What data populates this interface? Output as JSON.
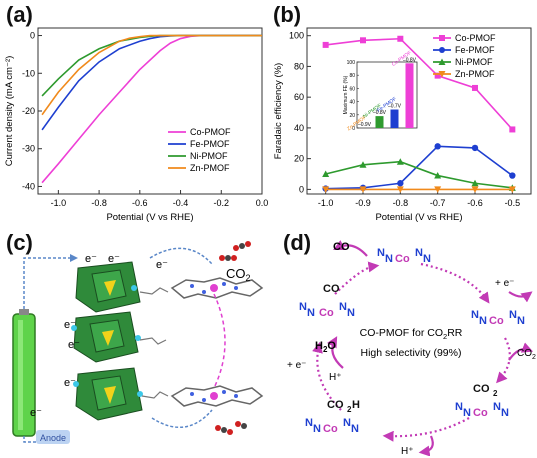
{
  "panels": [
    {
      "label": "(a)"
    },
    {
      "label": "(b)"
    },
    {
      "label": "(c)"
    },
    {
      "label": "(d)"
    }
  ],
  "chart_data": [
    {
      "type": "line",
      "panel": "(a)",
      "xlabel": "Potential (V vs RHE)",
      "ylabel": "Current density (mA cm⁻²)",
      "xlim": [
        -1.1,
        0.0
      ],
      "ylim": [
        -42,
        2
      ],
      "xticks": [
        "-1.0",
        "-0.8",
        "-0.6",
        "-0.4",
        "-0.2",
        "0.0"
      ],
      "yticks": [
        "0",
        "-10",
        "-20",
        "-30",
        "-40"
      ],
      "legend_position": "bottom-right",
      "series": [
        {
          "name": "Co-PMOF",
          "color": "#ee3fd6",
          "x": [
            -1.08,
            -1.0,
            -0.9,
            -0.8,
            -0.7,
            -0.6,
            -0.5,
            -0.45,
            -0.4,
            -0.35,
            -0.3,
            0.0
          ],
          "y": [
            -39,
            -34,
            -27.5,
            -21,
            -15,
            -9,
            -4,
            -2,
            -0.8,
            -0.2,
            0,
            0
          ]
        },
        {
          "name": "Fe-PMOF",
          "color": "#1e3fd0",
          "x": [
            -1.08,
            -1.0,
            -0.9,
            -0.8,
            -0.7,
            -0.6,
            -0.55,
            -0.5,
            -0.45,
            -0.4,
            0.0
          ],
          "y": [
            -25,
            -19,
            -12,
            -7,
            -3.5,
            -1.5,
            -0.8,
            -0.3,
            -0.1,
            0,
            0
          ]
        },
        {
          "name": "Ni-PMOF",
          "color": "#2e9a2e",
          "x": [
            -1.08,
            -1.0,
            -0.9,
            -0.8,
            -0.7,
            -0.6,
            -0.55,
            -0.5,
            0.0
          ],
          "y": [
            -16,
            -11.5,
            -6.5,
            -3.5,
            -1.5,
            -0.5,
            -0.2,
            0,
            0
          ]
        },
        {
          "name": "Zn-PMOF",
          "color": "#f08a1c",
          "x": [
            -1.08,
            -1.0,
            -0.9,
            -0.8,
            -0.7,
            -0.65,
            -0.6,
            -0.55,
            0.0
          ],
          "y": [
            -21,
            -15,
            -9,
            -4.5,
            -1.5,
            -0.7,
            -0.3,
            0,
            0
          ]
        }
      ]
    },
    {
      "type": "line",
      "panel": "(b)",
      "xlabel": "Potential (V vs RHE)",
      "ylabel": "Faradaic efficiency (%)",
      "xlim": [
        -1.05,
        -0.45
      ],
      "ylim": [
        -3,
        105
      ],
      "xticks": [
        "-1.0",
        "-0.9",
        "-0.8",
        "-0.7",
        "-0.6",
        "-0.5"
      ],
      "yticks": [
        "0",
        "20",
        "40",
        "60",
        "80",
        "100"
      ],
      "legend_position": "top-right",
      "series": [
        {
          "name": "Co-PMOF",
          "color": "#ee3fd6",
          "marker": "square",
          "x": [
            -1.0,
            -0.9,
            -0.8,
            -0.7,
            -0.6,
            -0.5
          ],
          "y": [
            94,
            97,
            98,
            74,
            66,
            39
          ]
        },
        {
          "name": "Fe-PMOF",
          "color": "#1e3fd0",
          "marker": "circle",
          "x": [
            -1.0,
            -0.9,
            -0.8,
            -0.7,
            -0.6,
            -0.5
          ],
          "y": [
            0.5,
            1,
            4,
            28,
            27,
            9
          ]
        },
        {
          "name": "Ni-PMOF",
          "color": "#2e9a2e",
          "marker": "triangle-up",
          "x": [
            -1.0,
            -0.9,
            -0.8,
            -0.7,
            -0.6,
            -0.5
          ],
          "y": [
            10,
            16,
            18,
            9,
            4,
            1
          ]
        },
        {
          "name": "Zn-PMOF",
          "color": "#f08a1c",
          "marker": "triangle-down",
          "x": [
            -1.0,
            -0.9,
            -0.8,
            -0.7,
            -0.6,
            -0.5
          ],
          "y": [
            0,
            0,
            0,
            0,
            0,
            0
          ]
        }
      ],
      "inset": {
        "type": "bar",
        "ylabel": "Maximum FE (%)",
        "yticks": [
          "0",
          "20",
          "40",
          "60",
          "80",
          "100"
        ],
        "ylim": [
          0,
          100
        ],
        "categories": [
          "Zn-PMOF",
          "Ni-PMOF",
          "Fe-PMOF",
          "Co-PMOF"
        ],
        "values": [
          0,
          18,
          28,
          98
        ],
        "bar_labels": [
          "–0.9V",
          "–0.8V",
          "–0.7V",
          "–0.8V"
        ],
        "colors": [
          "#f08a1c",
          "#2e9a2e",
          "#1e3fd0",
          "#ee3fd6"
        ]
      }
    }
  ],
  "panel_c": {
    "electron": "e⁻",
    "co2": "CO",
    "co2_sub": "2",
    "anode": "Anode"
  },
  "panel_d": {
    "center_line1": "CO-PMOF for CO",
    "center_line1_sub": "2",
    "center_line1_end": "RR",
    "center_line2": "High selectivity (99%)",
    "co_out": "CO",
    "e_in": "+ e⁻",
    "co2_in": "CO",
    "co2_sub": "2",
    "h_in_bottom": "H⁺",
    "h2o_out": "H",
    "h2o_sub": "2",
    "h2o_end": "O",
    "e_in_left": "+ e⁻",
    "h_in_left": "H⁺",
    "co_ligand": "CO",
    "co2_ligand": "CO",
    "co2h_ligand": "CO",
    "co2h_sub": "2",
    "co2h_end": "H",
    "metal": "Co",
    "n": "N"
  }
}
